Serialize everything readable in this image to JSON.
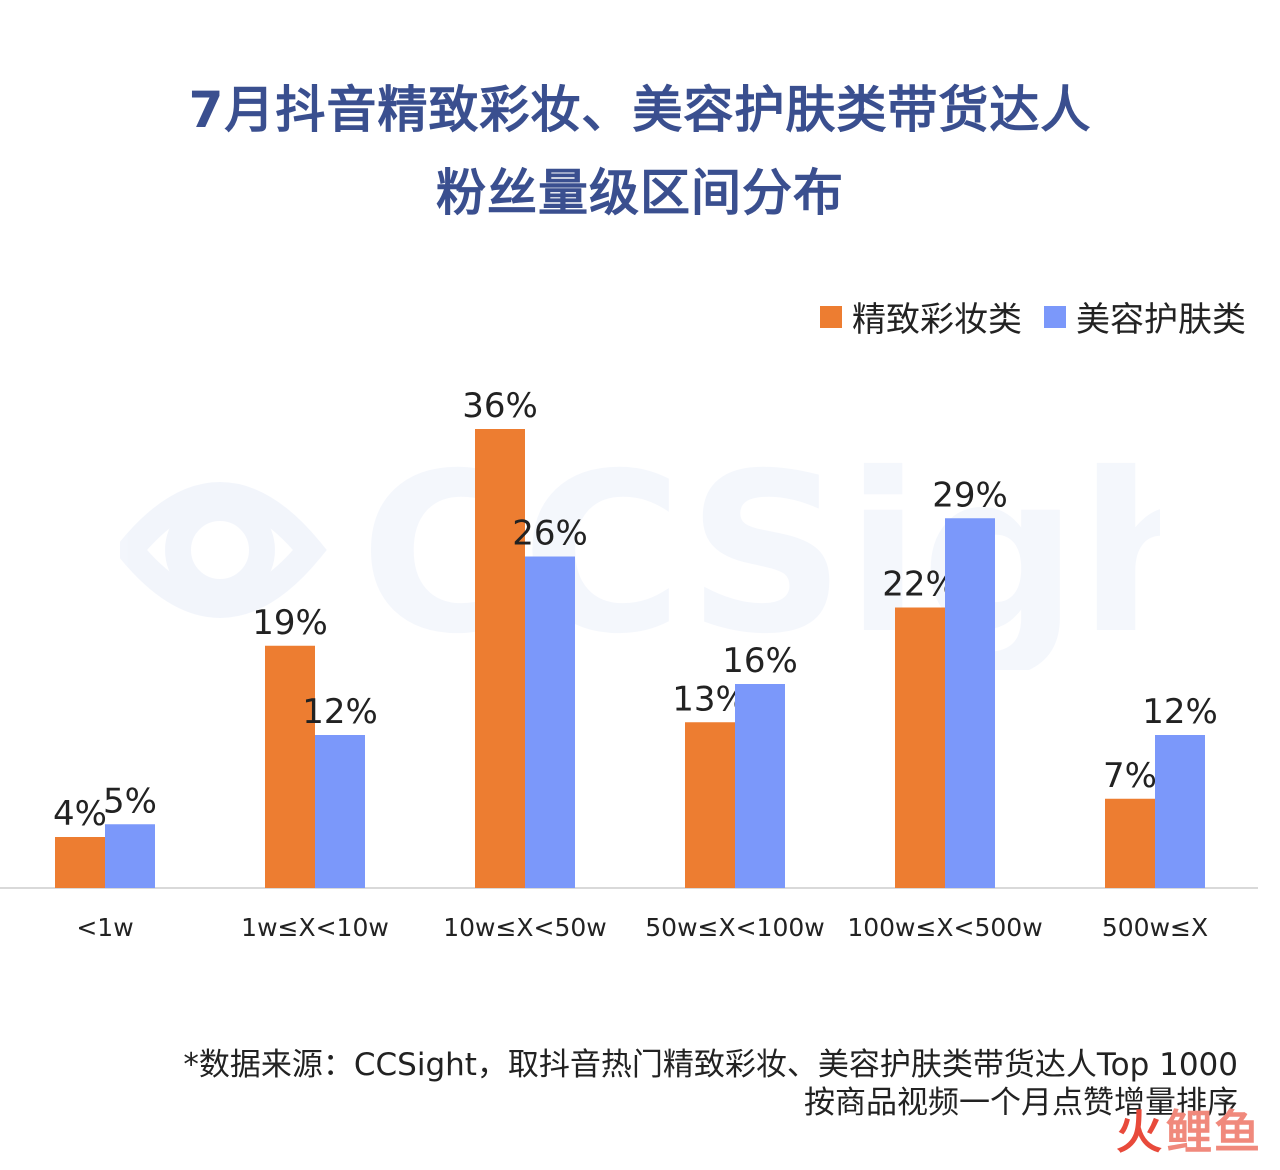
{
  "title_line1": "7月抖音精致彩妆、美容护肤类带货达人",
  "title_line2": "粉丝量级区间分布",
  "watermark_text": "CCSight",
  "footnote_line1": "*数据来源：CCSight，取抖音热门精致彩妆、美容护肤类带货达人Top 1000",
  "footnote_line2": "按商品视频一个月点赞增量排序",
  "brand": {
    "part1": "火",
    "part2": "鲤鱼"
  },
  "colors": {
    "series1": "#ed7d31",
    "series2": "#7b98fa",
    "title": "#3a4f8f",
    "axis": "#d9d9d9"
  },
  "chart_data": {
    "type": "bar",
    "categories": [
      "<1w",
      "1w≤X<10w",
      "10w≤X<50w",
      "50w≤X<100w",
      "100w≤X<500w",
      "500w≤X"
    ],
    "series": [
      {
        "name": "精致彩妆类",
        "values": [
          4,
          19,
          36,
          13,
          22,
          7
        ],
        "labels": [
          "4%",
          "19%",
          "36%",
          "13%",
          "22%",
          "7%"
        ]
      },
      {
        "name": "美容护肤类",
        "values": [
          5,
          12,
          26,
          16,
          29,
          12
        ],
        "labels": [
          "5%",
          "12%",
          "26%",
          "16%",
          "29%",
          "12%"
        ]
      }
    ],
    "unit": "%",
    "ylim": [
      0,
      36
    ],
    "grid": false,
    "legend": "top-right"
  }
}
